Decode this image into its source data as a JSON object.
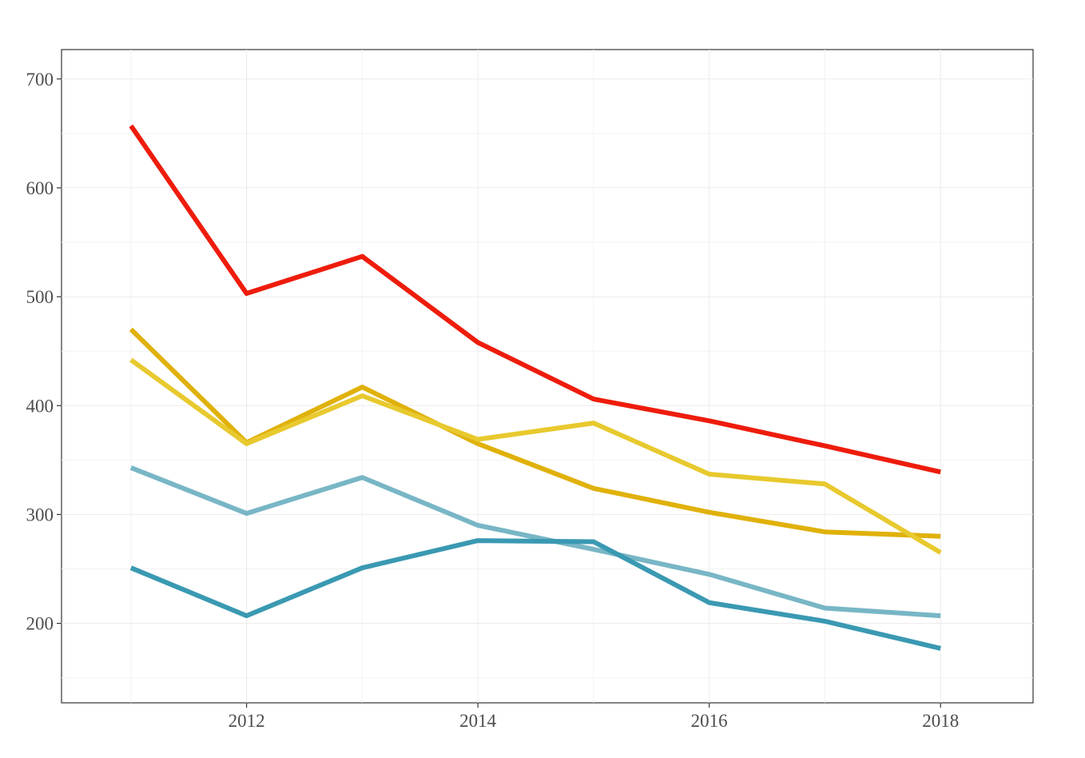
{
  "chart_data": {
    "type": "line",
    "title": "",
    "xlabel": "",
    "ylabel": "",
    "x": [
      2011,
      2012,
      2013,
      2014,
      2015,
      2016,
      2017,
      2018
    ],
    "xlim": [
      2010.4,
      2018.8
    ],
    "ylim": [
      127,
      727
    ],
    "x_ticks": [
      2012,
      2014,
      2016,
      2018
    ],
    "y_ticks": [
      200,
      300,
      400,
      500,
      600,
      700
    ],
    "x_tick_labels": [
      "2012",
      "2014",
      "2016",
      "2018"
    ],
    "y_tick_labels": [
      "200",
      "300",
      "400",
      "500",
      "600",
      "700"
    ],
    "grid": true,
    "legend": "none",
    "series": [
      {
        "color": "#ee1c0c",
        "values": [
          657,
          503,
          537,
          458,
          406,
          386,
          363,
          339
        ]
      },
      {
        "color": "#e0b10a",
        "values": [
          470,
          366,
          417,
          365,
          324,
          302,
          284,
          280
        ]
      },
      {
        "color": "#e8c92e",
        "values": [
          442,
          365,
          409,
          369,
          384,
          337,
          328,
          265
        ]
      },
      {
        "color": "#78b6c6",
        "values": [
          343,
          301,
          334,
          290,
          268,
          245,
          214,
          207
        ]
      },
      {
        "color": "#3a99b2",
        "values": [
          251,
          207,
          251,
          276,
          275,
          219,
          202,
          177
        ]
      }
    ]
  }
}
